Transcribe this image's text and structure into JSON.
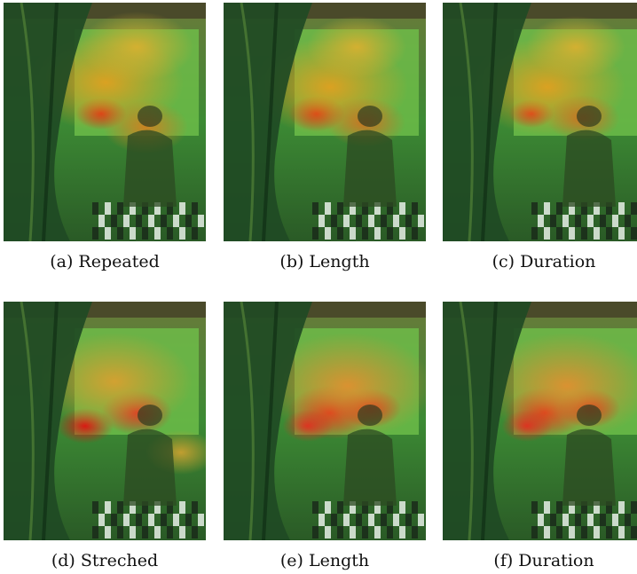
{
  "figure": {
    "panels": [
      {
        "caption": "(a) Repeated"
      },
      {
        "caption": "(b) Length"
      },
      {
        "caption": "(c) Duration"
      },
      {
        "caption": "(d) Streched"
      },
      {
        "caption": "(e) Length"
      },
      {
        "caption": "(f) Duration"
      }
    ]
  }
}
